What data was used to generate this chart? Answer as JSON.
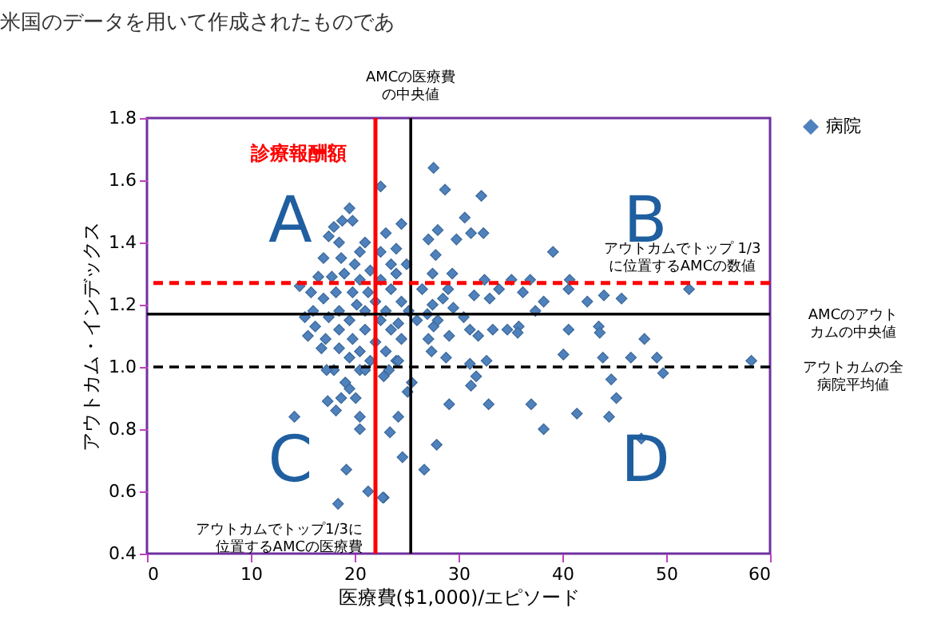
{
  "chart_data": {
    "type": "scatter",
    "xlabel": "医療費($1,000)/エピソード",
    "ylabel": "アウトカム・インデックス",
    "xlim": [
      0,
      60
    ],
    "xticks": [
      0,
      10,
      20,
      30,
      40,
      50,
      60
    ],
    "ylim": [
      0.4,
      1.8
    ],
    "yticks": [
      0.4,
      0.6,
      0.8,
      {
        "value": 1,
        "label": "1.0"
      },
      1.2,
      1.4,
      1.6,
      1.8
    ],
    "grid": false,
    "legend": "top right",
    "marker": "diamond",
    "series": [
      {
        "name": "病院",
        "color": "#4f81bd",
        "x": [
          22.5,
          19.5,
          19.8,
          18.8,
          24.5,
          23,
          17.5,
          18,
          18.5,
          21,
          24,
          20.5,
          22.5,
          17,
          18.7,
          20,
          23.5,
          25,
          21.5,
          19,
          16.5,
          17.8,
          14.7,
          20.5,
          22.5,
          24,
          15.8,
          18.2,
          19.8,
          21.3,
          23.5,
          17,
          20.2,
          22,
          24.5,
          16,
          18.5,
          21,
          23,
          25.2,
          15.2,
          17.5,
          19.5,
          22.5,
          24.2,
          16.2,
          18.5,
          21,
          23.5,
          15.5,
          17.2,
          19.8,
          22,
          24.5,
          16.8,
          18.5,
          20.5,
          23,
          19.5,
          21.5,
          24,
          18,
          20.5,
          22.8,
          25.5,
          19.5,
          27.6,
          28.7,
          32.2,
          30.6,
          28.0,
          31.2,
          32.4,
          29.8,
          27.1,
          39.1,
          27.8,
          29.4,
          27.5,
          32.5,
          35.1,
          36.9,
          40.7,
          52.2,
          40.6,
          36.2,
          33.9,
          38.2,
          42.4,
          44.0,
          45.7,
          31.5,
          33.0,
          37.4,
          40.6,
          43.5,
          43.6,
          47.9,
          40.1,
          43.9,
          46.6,
          49.1,
          58.2,
          49.7,
          44.7,
          45.2,
          44.5,
          41.4,
          47.6,
          38.2,
          37.0,
          32.9,
          29.1,
          31.2,
          31.7,
          31.1,
          32.7,
          28.8,
          27.4,
          27.1,
          29.1,
          31.1,
          31.9,
          33.3,
          34.7,
          35.8,
          35.7,
          27.9,
          26.7,
          24.2,
          23.4,
          24.6,
          25.1,
          24.2,
          22.8,
          27.6,
          27.5,
          28.5,
          29.5,
          30.5,
          26.5,
          29,
          26,
          27,
          28,
          14.2,
          17.4,
          18.2,
          18.7,
          20.1,
          20.5,
          20.5,
          19.1,
          19.2,
          18.4,
          21.3,
          22.7,
          17.3,
          21.0,
          23.3
        ],
        "values": [
          1.58,
          1.51,
          1.47,
          1.47,
          1.46,
          1.43,
          1.42,
          1.45,
          1.4,
          1.4,
          1.38,
          1.37,
          1.37,
          1.35,
          1.35,
          1.33,
          1.33,
          1.33,
          1.31,
          1.3,
          1.29,
          1.29,
          1.26,
          1.28,
          1.28,
          1.3,
          1.24,
          1.24,
          1.24,
          1.24,
          1.25,
          1.22,
          1.2,
          1.21,
          1.21,
          1.18,
          1.18,
          1.18,
          1.18,
          1.18,
          1.16,
          1.16,
          1.15,
          1.15,
          1.14,
          1.13,
          1.12,
          1.12,
          1.12,
          1.1,
          1.09,
          1.09,
          1.08,
          1.09,
          1.06,
          1.06,
          1.05,
          1.05,
          1.03,
          1.02,
          1.02,
          0.99,
          0.99,
          0.97,
          0.95,
          0.93,
          1.64,
          1.57,
          1.55,
          1.48,
          1.44,
          1.43,
          1.43,
          1.41,
          1.41,
          1.37,
          1.36,
          1.3,
          1.3,
          1.28,
          1.28,
          1.28,
          1.28,
          1.25,
          1.25,
          1.24,
          1.25,
          1.21,
          1.21,
          1.23,
          1.22,
          1.23,
          1.22,
          1.18,
          1.12,
          1.13,
          1.11,
          1.09,
          1.04,
          1.03,
          1.03,
          1.03,
          1.02,
          0.98,
          0.96,
          0.9,
          0.84,
          0.85,
          0.77,
          0.8,
          0.88,
          0.88,
          0.88,
          0.94,
          0.97,
          1.01,
          1.02,
          1.03,
          1.05,
          1.09,
          1.1,
          1.12,
          1.1,
          1.12,
          1.12,
          1.13,
          1.11,
          0.75,
          0.67,
          0.84,
          0.79,
          0.71,
          0.92,
          1.02,
          0.58,
          1.13,
          1.2,
          1.22,
          1.19,
          1.16,
          1.25,
          1.25,
          1.15,
          1.17,
          1.15,
          0.84,
          0.89,
          0.86,
          0.9,
          0.9,
          0.84,
          0.8,
          0.95,
          0.67,
          0.56,
          0.6,
          0.58,
          0.99,
          0.99,
          0.99
        ]
      }
    ],
    "ref_lines": [
      {
        "axis": "x",
        "value": 22,
        "label": "診療報酬額",
        "color": "#ff0000",
        "line_style": "solid"
      },
      {
        "axis": "x",
        "value": 25.4,
        "label": "AMCの医療費の中央値",
        "color": "#000000",
        "line_style": "solid"
      },
      {
        "axis": "y",
        "value": 1.27,
        "label": "アウトカムでトップ 1/3に位置するAMCの数値",
        "color": "#ff0000",
        "line_style": "dashed"
      },
      {
        "axis": "y",
        "value": 1.17,
        "label": "AMCのアウトカムの中央値",
        "color": "#000000",
        "line_style": "solid"
      },
      {
        "axis": "y",
        "value": 1.0,
        "label": "アウトカムの全病院平均値",
        "color": "#000000",
        "line_style": "dashed"
      }
    ],
    "annotations": [
      "米国のデータを用いて作成されたものであ",
      "A",
      "B",
      "C",
      "D",
      {
        "text": "アウトカムでトップ1/3に位置するAMCの医療費",
        "x": 22,
        "y": 0.48
      }
    ]
  }
}
